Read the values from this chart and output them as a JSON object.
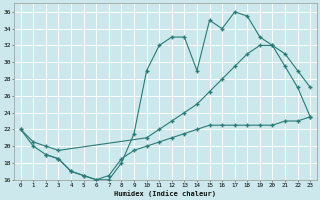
{
  "bg_color": "#cce8ec",
  "grid_color": "#b0d4d8",
  "line_color": "#2a7a78",
  "xlabel": "Humidex (Indice chaleur)",
  "ylim": [
    16,
    37
  ],
  "xlim": [
    -0.5,
    23.5
  ],
  "yticks": [
    16,
    18,
    20,
    22,
    24,
    26,
    28,
    30,
    32,
    34,
    36
  ],
  "xticks": [
    0,
    1,
    2,
    3,
    4,
    5,
    6,
    7,
    8,
    9,
    10,
    11,
    12,
    13,
    14,
    15,
    16,
    17,
    18,
    19,
    20,
    21,
    22,
    23
  ],
  "line1_x": [
    0,
    1,
    2,
    3,
    4,
    5,
    6,
    7,
    8,
    9,
    10,
    11,
    12,
    13,
    14,
    15,
    16,
    17,
    18,
    19,
    20,
    21,
    22,
    23
  ],
  "line1_y": [
    22,
    20,
    19,
    18.5,
    17,
    16.5,
    16,
    16,
    18,
    21.5,
    29,
    32,
    33,
    33,
    29,
    35,
    34,
    36,
    35.5,
    33,
    32,
    29.5,
    27,
    23.5
  ],
  "line2_x": [
    0,
    1,
    2,
    3,
    10,
    11,
    12,
    13,
    14,
    15,
    16,
    17,
    18,
    19,
    20,
    21,
    22,
    23
  ],
  "line2_y": [
    22,
    20.5,
    20,
    19.5,
    21,
    22,
    23,
    24,
    25,
    26.5,
    28,
    29.5,
    31,
    32,
    32,
    31,
    29,
    27
  ],
  "line3_x": [
    2,
    3,
    4,
    5,
    6,
    7,
    8,
    9,
    10,
    11,
    12,
    13,
    14,
    15,
    16,
    17,
    18,
    19,
    20,
    21,
    22,
    23
  ],
  "line3_y": [
    19,
    18.5,
    17,
    16.5,
    16,
    16.5,
    18.5,
    19.5,
    20,
    20.5,
    21,
    21.5,
    22,
    22.5,
    22.5,
    22.5,
    22.5,
    22.5,
    22.5,
    23,
    23,
    23.5
  ]
}
